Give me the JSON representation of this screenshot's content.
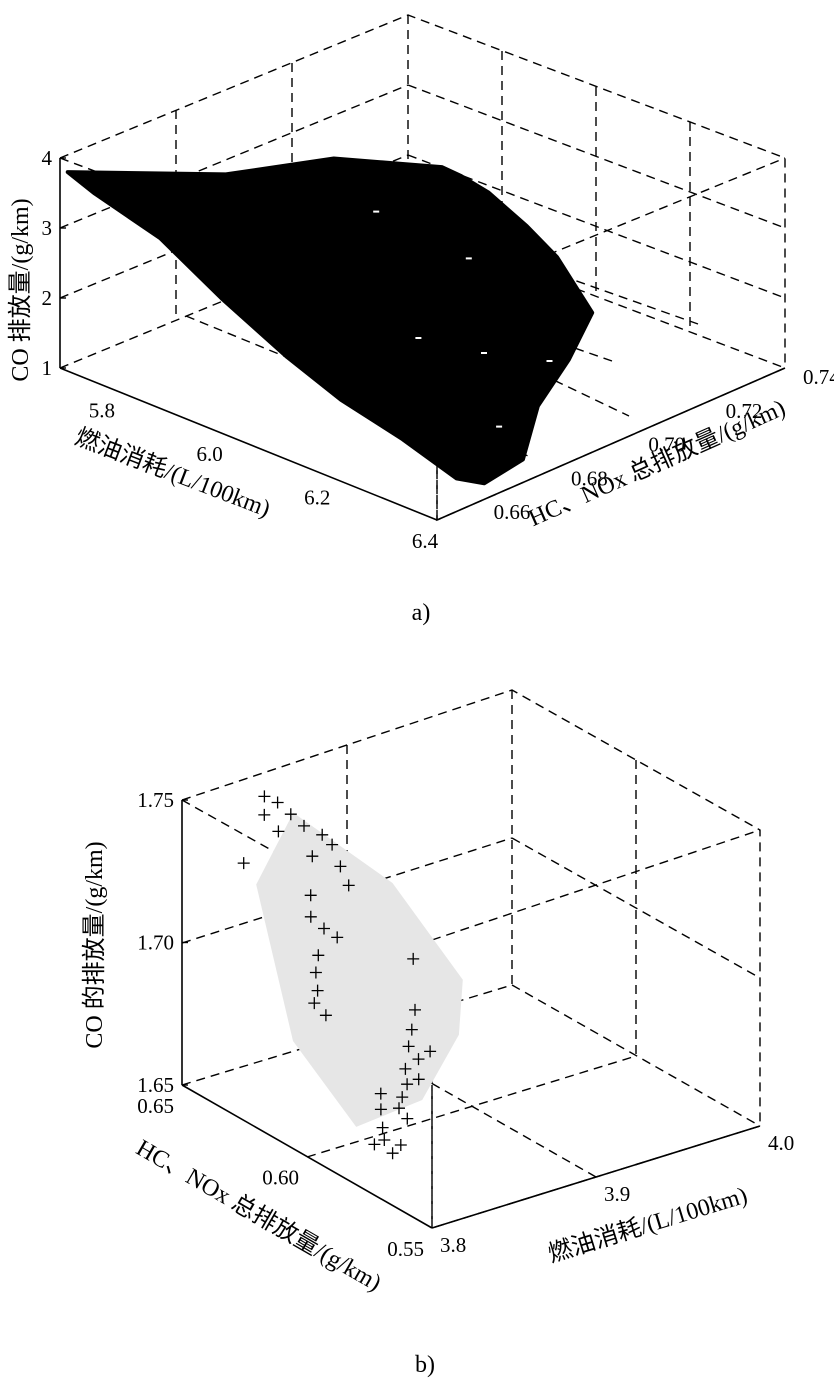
{
  "chart_data": [
    {
      "panel": "a)",
      "type": "scatter",
      "projection": "3d",
      "zlabel": "CO 排放量/(g/km)",
      "xlabel": "燃油消耗/(L/100km)",
      "ylabel": "HC、NOx 总排放量/(g/km)",
      "z_ticks": [
        "1",
        "2",
        "3",
        "4"
      ],
      "x_ticks": [
        "5.8",
        "6.0",
        "6.2",
        "6.4"
      ],
      "y_ticks": [
        "0.66",
        "0.68",
        "0.70",
        "0.72",
        "0.74"
      ],
      "zlim": [
        1,
        4
      ],
      "xlim": [
        5.7,
        6.4
      ],
      "ylim": [
        0.65,
        0.74
      ],
      "grid": true,
      "description_of_marks": "dense cloud of black points forming a surface",
      "cloud_polygon": [
        [
          6.05,
          0.7,
          3.75
        ],
        [
          5.95,
          0.686,
          3.9
        ],
        [
          5.85,
          0.672,
          3.7
        ],
        [
          5.7,
          0.652,
          3.75
        ],
        [
          5.75,
          0.652,
          3.6
        ],
        [
          5.85,
          0.655,
          3.2
        ],
        [
          5.95,
          0.657,
          2.6
        ],
        [
          6.05,
          0.66,
          2.0
        ],
        [
          6.15,
          0.66,
          1.7
        ],
        [
          6.25,
          0.662,
          1.4
        ],
        [
          6.35,
          0.662,
          1.15
        ],
        [
          6.38,
          0.665,
          1.1
        ],
        [
          6.38,
          0.675,
          1.2
        ],
        [
          6.3,
          0.69,
          1.35
        ],
        [
          6.25,
          0.705,
          1.5
        ],
        [
          6.2,
          0.718,
          1.7
        ],
        [
          6.12,
          0.72,
          2.2
        ],
        [
          6.1,
          0.715,
          2.7
        ],
        [
          6.05,
          0.712,
          3.1
        ],
        [
          6.05,
          0.705,
          3.5
        ]
      ],
      "color": "#000000"
    },
    {
      "panel": "b)",
      "type": "scatter",
      "projection": "3d",
      "zlabel": "CO 的排放量/(g/km)",
      "xlabel": "燃油消耗/(L/100km)",
      "ylabel": "HC、NOx 总排放量/(g/km)",
      "z_ticks": [
        "1.65",
        "1.70",
        "1.75"
      ],
      "x_ticks": [
        "3.8",
        "3.9",
        "4.0"
      ],
      "y_ticks": [
        "0.55",
        "0.60",
        "0.65"
      ],
      "zlim": [
        1.65,
        1.75
      ],
      "xlim": [
        3.8,
        4.0
      ],
      "ylim": [
        0.55,
        0.65
      ],
      "grid": true,
      "marker": "+",
      "color": "#000000",
      "fill_color": "#e6e6e6",
      "hull": [
        [
          3.845,
          0.635,
          1.745
        ],
        [
          3.875,
          0.615,
          1.725
        ],
        [
          3.895,
          0.6,
          1.695
        ],
        [
          3.885,
          0.595,
          1.68
        ],
        [
          3.855,
          0.59,
          1.665
        ],
        [
          3.83,
          0.6,
          1.655
        ],
        [
          3.825,
          0.622,
          1.675
        ],
        [
          3.83,
          0.64,
          1.72
        ]
      ],
      "points": [
        [
          3.835,
          0.64,
          1.75
        ],
        [
          3.84,
          0.638,
          1.748
        ],
        [
          3.845,
          0.636,
          1.744
        ],
        [
          3.838,
          0.642,
          1.742
        ],
        [
          3.842,
          0.639,
          1.737
        ],
        [
          3.85,
          0.634,
          1.74
        ],
        [
          3.855,
          0.63,
          1.738
        ],
        [
          3.858,
          0.628,
          1.735
        ],
        [
          3.852,
          0.632,
          1.73
        ],
        [
          3.86,
          0.626,
          1.728
        ],
        [
          3.83,
          0.645,
          1.725
        ],
        [
          3.862,
          0.624,
          1.722
        ],
        [
          3.848,
          0.63,
          1.718
        ],
        [
          3.845,
          0.628,
          1.712
        ],
        [
          3.85,
          0.626,
          1.708
        ],
        [
          3.855,
          0.624,
          1.705
        ],
        [
          3.845,
          0.625,
          1.7
        ],
        [
          3.842,
          0.624,
          1.695
        ],
        [
          3.84,
          0.622,
          1.69
        ],
        [
          3.838,
          0.622,
          1.686
        ],
        [
          3.842,
          0.62,
          1.682
        ],
        [
          3.88,
          0.61,
          1.7
        ],
        [
          3.875,
          0.606,
          1.685
        ],
        [
          3.87,
          0.604,
          1.68
        ],
        [
          3.865,
          0.602,
          1.676
        ],
        [
          3.868,
          0.6,
          1.672
        ],
        [
          3.872,
          0.598,
          1.675
        ],
        [
          3.86,
          0.6,
          1.67
        ],
        [
          3.858,
          0.598,
          1.666
        ],
        [
          3.862,
          0.596,
          1.668
        ],
        [
          3.855,
          0.598,
          1.662
        ],
        [
          3.85,
          0.596,
          1.66
        ],
        [
          3.852,
          0.594,
          1.657
        ],
        [
          3.845,
          0.6,
          1.664
        ],
        [
          3.842,
          0.598,
          1.66
        ],
        [
          3.84,
          0.596,
          1.655
        ],
        [
          3.838,
          0.594,
          1.652
        ],
        [
          3.835,
          0.596,
          1.65
        ],
        [
          3.84,
          0.592,
          1.648
        ],
        [
          3.845,
          0.592,
          1.65
        ]
      ]
    }
  ],
  "captions": {
    "a": "a)",
    "b": "b)"
  }
}
